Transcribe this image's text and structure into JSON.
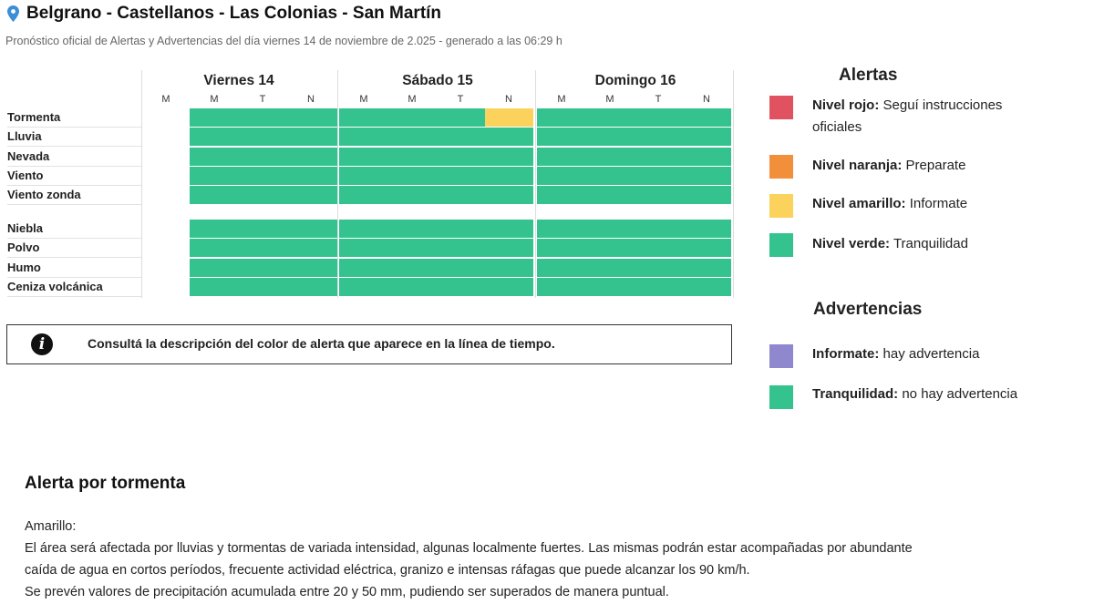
{
  "header": {
    "title": "Belgrano - Castellanos - Las Colonias - San Martín",
    "subtitle": "Pronóstico oficial de Alertas y Advertencias del día viernes 14 de noviembre de 2.025 - generado a las 06:29 h"
  },
  "timeline": {
    "days": [
      "Viernes 14",
      "Sábado 15",
      "Domingo 16"
    ],
    "slots": [
      "M",
      "M",
      "T",
      "N",
      "M",
      "M",
      "T",
      "N",
      "M",
      "M",
      "T",
      "N"
    ],
    "rows_group1": [
      {
        "label": "Tormenta",
        "levels": [
          "none",
          "green",
          "green",
          "green",
          "green",
          "green",
          "green",
          "yellow",
          "green",
          "green",
          "green",
          "green"
        ]
      },
      {
        "label": "Lluvia",
        "levels": [
          "none",
          "green",
          "green",
          "green",
          "green",
          "green",
          "green",
          "green",
          "green",
          "green",
          "green",
          "green"
        ]
      },
      {
        "label": "Nevada",
        "levels": [
          "none",
          "green",
          "green",
          "green",
          "green",
          "green",
          "green",
          "green",
          "green",
          "green",
          "green",
          "green"
        ]
      },
      {
        "label": "Viento",
        "levels": [
          "none",
          "green",
          "green",
          "green",
          "green",
          "green",
          "green",
          "green",
          "green",
          "green",
          "green",
          "green"
        ]
      },
      {
        "label": "Viento zonda",
        "levels": [
          "none",
          "green",
          "green",
          "green",
          "green",
          "green",
          "green",
          "green",
          "green",
          "green",
          "green",
          "green"
        ]
      }
    ],
    "rows_group2": [
      {
        "label": "Niebla",
        "levels": [
          "none",
          "green",
          "green",
          "green",
          "green",
          "green",
          "green",
          "green",
          "green",
          "green",
          "green",
          "green"
        ]
      },
      {
        "label": "Polvo",
        "levels": [
          "none",
          "green",
          "green",
          "green",
          "green",
          "green",
          "green",
          "green",
          "green",
          "green",
          "green",
          "green"
        ]
      },
      {
        "label": "Humo",
        "levels": [
          "none",
          "green",
          "green",
          "green",
          "green",
          "green",
          "green",
          "green",
          "green",
          "green",
          "green",
          "green"
        ]
      },
      {
        "label": "Ceniza volcánica",
        "levels": [
          "none",
          "green",
          "green",
          "green",
          "green",
          "green",
          "green",
          "green",
          "green",
          "green",
          "green",
          "green"
        ]
      }
    ]
  },
  "notice": {
    "icon": "info-icon",
    "text": "Consultá la descripción del color de alerta que aparece en la línea de tiempo."
  },
  "legend": {
    "alertas_title": "Alertas",
    "alertas": [
      {
        "color": "#e0525f",
        "label": "Nivel rojo:",
        "text": "Seguí instrucciones oficiales"
      },
      {
        "color": "#f28f3b",
        "label": "Nivel naranja:",
        "text": "Preparate"
      },
      {
        "color": "#fbd25c",
        "label": "Nivel amarillo:",
        "text": "Informate"
      },
      {
        "color": "#34c38f",
        "label": "Nivel verde:",
        "text": "Tranquilidad"
      }
    ],
    "advertencias_title": "Advertencias",
    "advertencias": [
      {
        "color": "#8f88cf",
        "label": "Informate:",
        "text": "hay advertencia"
      },
      {
        "color": "#34c38f",
        "label": "Tranquilidad:",
        "text": "no hay advertencia"
      }
    ]
  },
  "colors": {
    "green": "#34c38f",
    "yellow": "#fbd25c",
    "pin": "#3b8fd6"
  },
  "detail": {
    "title": "Alerta por tormenta",
    "level": "Amarillo:",
    "lines": [
      "El área será afectada por lluvias y tormentas de variada intensidad, algunas localmente fuertes. Las mismas podrán estar acompañadas por abundante",
      "caída de agua en cortos períodos, frecuente actividad eléctrica, granizo e intensas ráfagas que puede alcanzar los 90 km/h.",
      "Se prevén valores de precipitación acumulada entre 20 y 50 mm, pudiendo ser superados de manera puntual."
    ]
  }
}
